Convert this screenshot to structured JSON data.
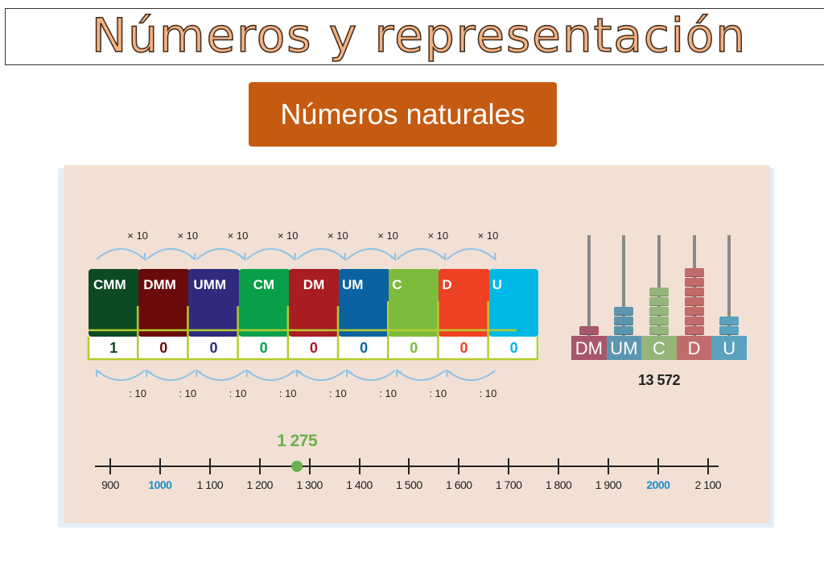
{
  "header": {
    "title": "Números y representación",
    "subtitle": "Números naturales"
  },
  "place_value_table": {
    "multiply_label": "× 10",
    "divide_label": ": 10",
    "columns": [
      {
        "label": "CMM",
        "digit": "1",
        "color": "#0b4a22"
      },
      {
        "label": "DMM",
        "digit": "0",
        "color": "#6b0a0a"
      },
      {
        "label": "UMM",
        "digit": "0",
        "color": "#2e2a7e"
      },
      {
        "label": "CM",
        "digit": "0",
        "color": "#0aa04a"
      },
      {
        "label": "DM",
        "digit": "0",
        "color": "#a81c22"
      },
      {
        "label": "UM",
        "digit": "0",
        "color": "#0a63a0"
      },
      {
        "label": "C",
        "digit": "0",
        "color": "#7dbb3c"
      },
      {
        "label": "D",
        "digit": "0",
        "color": "#ef4123"
      },
      {
        "label": "U",
        "digit": "0",
        "color": "#00b8e6"
      }
    ],
    "line_color": "#b5cc2e",
    "arrow_color": "#8ec3e6"
  },
  "abacus": {
    "rods": [
      {
        "label": "DM",
        "beads": 1,
        "color": "#a8566c"
      },
      {
        "label": "UM",
        "beads": 3,
        "color": "#5d95b0"
      },
      {
        "label": "C",
        "beads": 5,
        "color": "#95b57a"
      },
      {
        "label": "D",
        "beads": 7,
        "color": "#c26b6b"
      },
      {
        "label": "U",
        "beads": 2,
        "color": "#5aa2bd"
      }
    ],
    "value": "13 572"
  },
  "number_line": {
    "ticks": [
      "900",
      "1000",
      "1 100",
      "1 200",
      "1 300",
      "1 400",
      "1 500",
      "1 600",
      "1 700",
      "1 800",
      "1 900",
      "2000",
      "2 100"
    ],
    "tick_values": [
      900,
      1000,
      1100,
      1200,
      1300,
      1400,
      1500,
      1600,
      1700,
      1800,
      1900,
      2000,
      2100
    ],
    "highlighted": [
      "1000",
      "2000"
    ],
    "highlight_color": "#1a8fc9",
    "point": {
      "value": 1275,
      "label": "1 275",
      "color": "#6ab04c"
    }
  }
}
